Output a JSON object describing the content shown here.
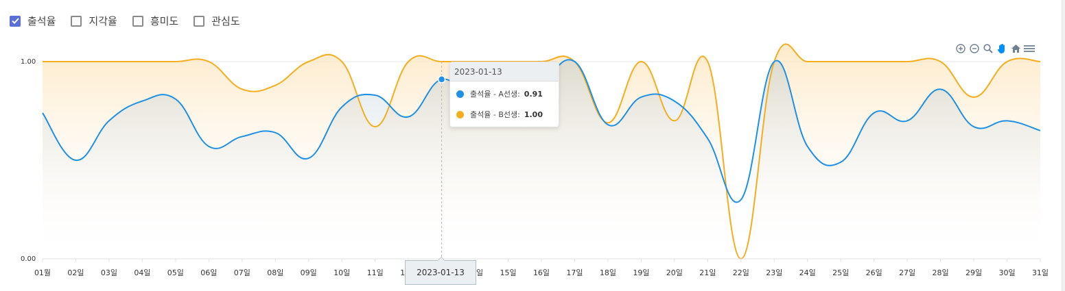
{
  "filters": [
    {
      "label": "출석율",
      "checked": true
    },
    {
      "label": "지각율",
      "checked": false
    },
    {
      "label": "흥미도",
      "checked": false
    },
    {
      "label": "관심도",
      "checked": false
    }
  ],
  "toolbar": [
    "zoom-in-icon",
    "zoom-out-icon",
    "zoom-select-icon",
    "pan-hand-icon",
    "home-reset-icon",
    "menu-icon"
  ],
  "tooltip": {
    "header": "2023-01-13",
    "rows": [
      {
        "label": "출석율 - A선생:",
        "value": "0.91",
        "color": "#1e90e6"
      },
      {
        "label": "출석율 - B선생:",
        "value": "1.00",
        "color": "#f5ad1d"
      }
    ]
  },
  "xaxis_tooltip": "2023-01-13",
  "chart_data": {
    "type": "area",
    "categories": [
      "01월",
      "02일",
      "03일",
      "04일",
      "05일",
      "06일",
      "07일",
      "08일",
      "09일",
      "10일",
      "11일",
      "12일",
      "13일",
      "14일",
      "15일",
      "16일",
      "17일",
      "18일",
      "19일",
      "20일",
      "21일",
      "22일",
      "23일",
      "24일",
      "25일",
      "26일",
      "27일",
      "28일",
      "29일",
      "30일",
      "31일"
    ],
    "series": [
      {
        "name": "출석율 - A선생",
        "color": "#1e90e6",
        "values": [
          0.74,
          0.5,
          0.7,
          0.8,
          0.81,
          0.57,
          0.62,
          0.64,
          0.51,
          0.77,
          0.83,
          0.72,
          0.91,
          0.8,
          0.86,
          0.9,
          1.0,
          0.68,
          0.82,
          0.8,
          0.61,
          0.3,
          1.0,
          0.57,
          0.49,
          0.74,
          0.7,
          0.86,
          0.67,
          0.7,
          0.65
        ]
      },
      {
        "name": "출석율 - B선생",
        "color": "#f5ad1d",
        "values": [
          1.0,
          1.0,
          1.0,
          1.0,
          1.0,
          1.0,
          0.86,
          0.88,
          1.0,
          1.0,
          0.67,
          1.0,
          1.0,
          1.0,
          1.0,
          1.0,
          1.0,
          0.69,
          1.0,
          0.7,
          1.0,
          0.0,
          1.0,
          1.0,
          1.0,
          1.0,
          1.0,
          1.0,
          0.82,
          1.0,
          1.0
        ]
      }
    ],
    "yticks": [
      "0.00",
      "1.00"
    ],
    "ylim": [
      0,
      1
    ],
    "highlight_index": 12
  }
}
